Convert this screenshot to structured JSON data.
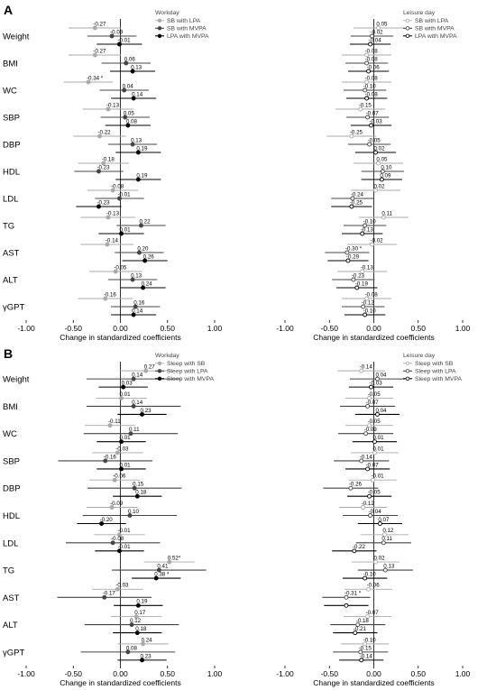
{
  "panels": [
    {
      "letter": "A"
    },
    {
      "letter": "B"
    }
  ],
  "chart_data": [
    {
      "type": "forest",
      "panel": "A",
      "facet": "Workday",
      "legend_title": "Workday",
      "xlabel": "Change in standardized coefficients",
      "xlim": [
        -1.0,
        1.0
      ],
      "xticks": [
        -1.0,
        -0.5,
        0.0,
        0.5,
        1.0
      ],
      "xtick_labels": [
        "-1.00",
        "-0.50",
        "0.00",
        "0.50",
        "1.00"
      ],
      "categories": [
        "Weight",
        "BMI",
        "WC",
        "SBP",
        "DBP",
        "HDL",
        "LDL",
        "TG",
        "AST",
        "ALT",
        "γGPT"
      ],
      "series": [
        {
          "name": "SB with LPA",
          "color": "#aaaaaa",
          "marker": "filled",
          "values": [
            -0.27,
            -0.27,
            -0.34,
            -0.13,
            -0.22,
            -0.18,
            -0.08,
            -0.13,
            -0.14,
            -0.05,
            -0.16
          ],
          "labels": [
            "-0.27",
            "-0.27",
            "-0.34 *",
            "-0.13",
            "-0.22",
            "-0.18",
            "-0.08",
            "-0.13",
            "-0.14",
            "-0.05",
            "-0.16"
          ],
          "lower": [
            -0.55,
            -0.55,
            -0.6,
            -0.4,
            -0.5,
            -0.45,
            -0.35,
            -0.42,
            -0.42,
            -0.33,
            -0.45
          ],
          "upper": [
            0.01,
            0.01,
            -0.08,
            0.14,
            0.06,
            0.09,
            0.19,
            0.16,
            0.14,
            0.23,
            0.13
          ]
        },
        {
          "name": "SB with MVPA",
          "color": "#444444",
          "marker": "filled",
          "values": [
            -0.09,
            0.06,
            0.04,
            0.05,
            0.13,
            -0.23,
            -0.01,
            0.22,
            0.2,
            0.13,
            0.16
          ],
          "labels": [
            "-0.09",
            "0.06",
            "0.04",
            "0.05",
            "0.13",
            "-0.23",
            "-0.01",
            "0.22",
            "0.20",
            "0.13",
            "0.16"
          ],
          "lower": [
            -0.35,
            -0.2,
            -0.22,
            -0.21,
            -0.13,
            -0.49,
            -0.27,
            -0.04,
            -0.06,
            -0.13,
            -0.1
          ],
          "upper": [
            0.17,
            0.32,
            0.3,
            0.31,
            0.39,
            0.03,
            0.25,
            0.48,
            0.46,
            0.39,
            0.42
          ]
        },
        {
          "name": "LPA with MVPA",
          "color": "#000000",
          "marker": "filled",
          "values": [
            -0.01,
            0.13,
            0.14,
            0.08,
            0.19,
            0.19,
            -0.23,
            0.01,
            0.26,
            0.24,
            0.14
          ],
          "labels": [
            "-0.01",
            "0.13",
            "0.14",
            "0.08",
            "0.19",
            "0.19",
            "-0.23",
            "0.01",
            "0.26",
            "0.24",
            "0.14"
          ],
          "lower": [
            -0.25,
            -0.11,
            -0.1,
            -0.16,
            -0.05,
            -0.05,
            -0.47,
            -0.23,
            0.02,
            0.0,
            -0.1
          ],
          "upper": [
            0.23,
            0.37,
            0.38,
            0.32,
            0.43,
            0.43,
            0.01,
            0.25,
            0.5,
            0.48,
            0.38
          ]
        }
      ]
    },
    {
      "type": "forest",
      "panel": "A",
      "facet": "Leisure day",
      "legend_title": "Leisure day",
      "xlabel": "Change in standardized coefficients",
      "xlim": [
        -1.0,
        1.0
      ],
      "xticks": [
        -1.0,
        -0.5,
        0.0,
        0.5,
        1.0
      ],
      "xtick_labels": [
        "-1.00",
        "-0.50",
        "0.00",
        "0.50",
        "1.00"
      ],
      "categories": [
        "Weight",
        "BMI",
        "WC",
        "SBP",
        "DBP",
        "HDL",
        "LDL",
        "TG",
        "AST",
        "ALT",
        "γGPT"
      ],
      "series": [
        {
          "name": "SB with LPA",
          "color": "#aaaaaa",
          "marker": "open",
          "values": [
            0.05,
            -0.08,
            -0.08,
            -0.15,
            -0.25,
            0.05,
            0.02,
            0.11,
            -0.02,
            -0.13,
            -0.08
          ],
          "labels": [
            "0.05",
            "-0.08",
            "-0.08",
            "-0.15",
            "-0.25",
            "0.05",
            "0.02",
            "0.11",
            "-0.02",
            "-0.13",
            "-0.08"
          ],
          "lower": [
            -0.23,
            -0.36,
            -0.36,
            -0.43,
            -0.53,
            -0.23,
            -0.26,
            -0.17,
            -0.3,
            -0.41,
            -0.36
          ],
          "upper": [
            0.33,
            0.2,
            0.2,
            0.13,
            0.03,
            0.33,
            0.3,
            0.39,
            0.26,
            0.15,
            0.2
          ]
        },
        {
          "name": "SB with MVPA",
          "color": "#444444",
          "marker": "open",
          "values": [
            -0.02,
            -0.08,
            -0.1,
            -0.07,
            -0.05,
            0.1,
            -0.24,
            -0.1,
            -0.3,
            -0.23,
            -0.12
          ],
          "labels": [
            "-0.02",
            "-0.08",
            "-0.10",
            "-0.07",
            "-0.05",
            "0.10",
            "-0.24",
            "-0.10",
            "-0.30 *",
            "-0.23",
            "-0.12"
          ],
          "lower": [
            -0.26,
            -0.32,
            -0.34,
            -0.31,
            -0.29,
            -0.14,
            -0.48,
            -0.34,
            -0.55,
            -0.47,
            -0.36
          ],
          "upper": [
            0.22,
            0.16,
            0.14,
            0.17,
            0.19,
            0.34,
            0.0,
            0.14,
            -0.05,
            0.01,
            0.12
          ]
        },
        {
          "name": "LPA with MVPA",
          "color": "#000000",
          "marker": "open",
          "values": [
            -0.04,
            -0.06,
            -0.08,
            -0.03,
            0.02,
            0.09,
            -0.25,
            -0.13,
            -0.29,
            -0.19,
            -0.1
          ],
          "labels": [
            "-0.04",
            "-0.06",
            "-0.08",
            "-0.03",
            "0.02",
            "0.09",
            "-0.25",
            "-0.13",
            "-0.29",
            "-0.19",
            "-0.10"
          ],
          "lower": [
            -0.27,
            -0.29,
            -0.31,
            -0.26,
            -0.21,
            -0.14,
            -0.48,
            -0.36,
            -0.52,
            -0.42,
            -0.33
          ],
          "upper": [
            0.19,
            0.17,
            0.15,
            0.2,
            0.25,
            0.32,
            -0.02,
            0.1,
            -0.06,
            0.04,
            0.13
          ]
        }
      ]
    },
    {
      "type": "forest",
      "panel": "B",
      "facet": "Workday",
      "legend_title": "Workday",
      "xlabel": "Change in standardized coefficients",
      "xlim": [
        -1.0,
        1.0
      ],
      "xticks": [
        -1.0,
        -0.5,
        0.0,
        0.5,
        1.0
      ],
      "xtick_labels": [
        "-1.00",
        "-0.50",
        "0.00",
        "0.50",
        "1.00"
      ],
      "categories": [
        "Weight",
        "BMI",
        "WC",
        "SBP",
        "DBP",
        "HDL",
        "LDL",
        "TG",
        "AST",
        "ALT",
        "γGPT"
      ],
      "series": [
        {
          "name": "Sleep with SB",
          "color": "#aaaaaa",
          "marker": "filled",
          "values": [
            0.27,
            0.01,
            -0.11,
            -0.03,
            -0.06,
            -0.09,
            -0.01,
            0.52,
            -0.03,
            0.17,
            0.24
          ],
          "labels": [
            "0.27",
            "0.01",
            "-0.11",
            "-0.03",
            "-0.06",
            "-0.09",
            "-0.01",
            "0.52*",
            "-0.03",
            "0.17",
            "0.24"
          ],
          "lower": [
            0.0,
            -0.26,
            -0.38,
            -0.3,
            -0.33,
            -0.36,
            -0.28,
            0.25,
            -0.3,
            -0.1,
            -0.03
          ],
          "upper": [
            0.54,
            0.28,
            0.16,
            0.24,
            0.21,
            0.18,
            0.26,
            0.79,
            0.24,
            0.44,
            0.51
          ]
        },
        {
          "name": "Sleep with LPA",
          "color": "#444444",
          "marker": "filled",
          "values": [
            0.14,
            0.14,
            0.11,
            -0.16,
            0.15,
            0.1,
            -0.08,
            0.41,
            -0.17,
            0.12,
            0.08
          ],
          "labels": [
            "0.14",
            "0.14",
            "0.11",
            "-0.16",
            "0.15",
            "0.10",
            "-0.08",
            "0.41",
            "-0.17",
            "0.12",
            "0.08"
          ],
          "lower": [
            -0.36,
            -0.36,
            -0.39,
            -0.66,
            -0.35,
            -0.4,
            -0.58,
            -0.09,
            -0.67,
            -0.38,
            -0.42
          ],
          "upper": [
            0.64,
            0.64,
            0.61,
            0.34,
            0.65,
            0.6,
            0.42,
            0.91,
            0.33,
            0.62,
            0.58
          ]
        },
        {
          "name": "Sleep with MVPA",
          "color": "#000000",
          "marker": "filled",
          "values": [
            0.03,
            0.23,
            0.01,
            0.01,
            0.18,
            -0.2,
            -0.01,
            0.38,
            0.19,
            0.18,
            0.23
          ],
          "labels": [
            "0.03",
            "0.23",
            "0.01",
            "0.01",
            "0.18",
            "-0.20",
            "-0.01",
            "0.38 *",
            "0.19",
            "0.18",
            "0.23"
          ],
          "lower": [
            -0.23,
            -0.03,
            -0.25,
            -0.25,
            -0.08,
            -0.46,
            -0.27,
            0.12,
            -0.07,
            -0.08,
            -0.03
          ],
          "upper": [
            0.29,
            0.49,
            0.27,
            0.27,
            0.44,
            0.06,
            0.25,
            0.64,
            0.45,
            0.44,
            0.49
          ]
        }
      ]
    },
    {
      "type": "forest",
      "panel": "B",
      "facet": "Leisure day",
      "legend_title": "Leisure day",
      "xlabel": "Change in standardized coefficients",
      "xlim": [
        -1.0,
        1.0
      ],
      "xticks": [
        -1.0,
        -0.5,
        0.0,
        0.5,
        1.0
      ],
      "xtick_labels": [
        "-1.00",
        "-0.50",
        "0.00",
        "0.50",
        "1.00"
      ],
      "categories": [
        "Weight",
        "BMI",
        "WC",
        "SBP",
        "DBP",
        "HDL",
        "LDL",
        "TG",
        "AST",
        "ALT",
        "γGPT"
      ],
      "series": [
        {
          "name": "Sleep with SB",
          "color": "#aaaaaa",
          "marker": "open",
          "values": [
            -0.14,
            -0.05,
            -0.05,
            0.01,
            -0.01,
            -0.12,
            0.12,
            0.02,
            -0.06,
            -0.07,
            -0.1
          ],
          "labels": [
            "-0.14",
            "-0.05",
            "-0.05",
            "0.01",
            "-0.01",
            "-0.12",
            "0.12",
            "0.02",
            "-0.06",
            "-0.07",
            "-0.10"
          ],
          "lower": [
            -0.41,
            -0.32,
            -0.32,
            -0.26,
            -0.28,
            -0.39,
            -0.15,
            -0.25,
            -0.33,
            -0.34,
            -0.37
          ],
          "upper": [
            0.13,
            0.22,
            0.22,
            0.28,
            0.26,
            0.15,
            0.39,
            0.29,
            0.21,
            0.2,
            0.17
          ]
        },
        {
          "name": "Sleep with LPA",
          "color": "#444444",
          "marker": "open",
          "values": [
            0.04,
            -0.07,
            -0.09,
            -0.14,
            -0.26,
            -0.04,
            0.11,
            0.13,
            -0.31,
            -0.18,
            -0.15
          ],
          "labels": [
            "0.04",
            "-0.07",
            "-0.09",
            "-0.14",
            "-0.26",
            "-0.04",
            "0.11",
            "0.13",
            "-0.31 *",
            "-0.18",
            "-0.15"
          ],
          "lower": [
            -0.27,
            -0.38,
            -0.4,
            -0.45,
            -0.57,
            -0.35,
            -0.2,
            -0.18,
            -0.58,
            -0.49,
            -0.46
          ],
          "upper": [
            0.35,
            0.24,
            0.22,
            0.17,
            0.05,
            0.27,
            0.42,
            0.44,
            -0.04,
            0.13,
            0.16
          ]
        },
        {
          "name": "Sleep with MVPA",
          "color": "#000000",
          "marker": "open",
          "values": [
            -0.03,
            0.04,
            0.01,
            -0.07,
            -0.05,
            0.07,
            -0.22,
            -0.1,
            -0.31,
            -0.21,
            -0.14
          ],
          "labels": [
            "-0.03",
            "0.04",
            "0.01",
            "-0.07",
            "-0.05",
            "0.07",
            "-0.22",
            "-0.10",
            "",
            "-0.21",
            "-0.14"
          ],
          "lower": [
            -0.28,
            -0.21,
            -0.24,
            -0.32,
            -0.3,
            -0.18,
            -0.47,
            -0.35,
            -0.56,
            -0.46,
            -0.39
          ],
          "upper": [
            0.22,
            0.29,
            0.26,
            0.18,
            0.2,
            0.32,
            0.03,
            0.15,
            -0.06,
            0.04,
            0.11
          ]
        }
      ]
    }
  ]
}
